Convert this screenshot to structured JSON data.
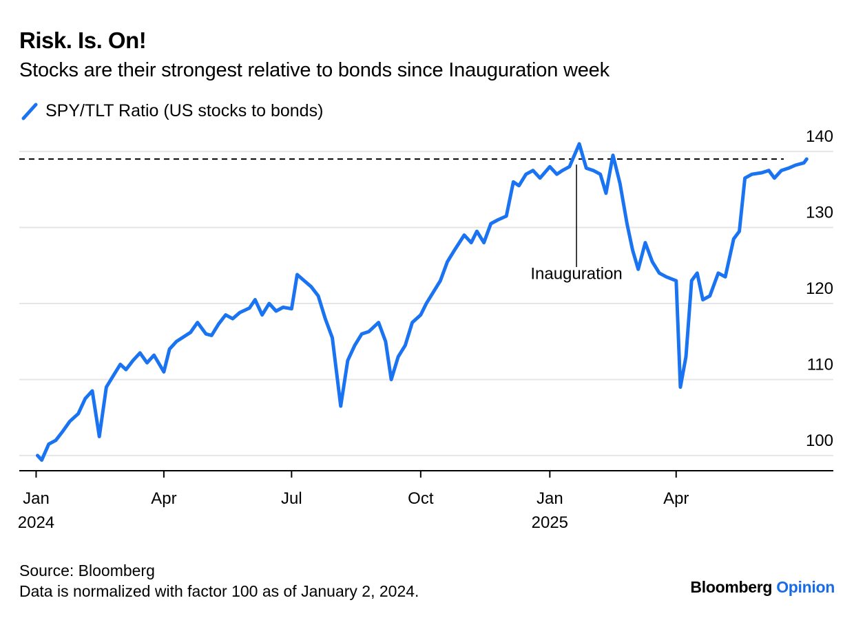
{
  "header": {
    "title": "Risk. Is. On!",
    "subtitle": "Stocks are their strongest relative to bonds since Inauguration week"
  },
  "footer": {
    "source": "Source: Bloomberg",
    "note": "Data is normalized with factor 100 as of January 2, 2024.",
    "brand": "Bloomberg",
    "brand_accent": "Opinion"
  },
  "colors": {
    "series": "#1a73f0",
    "brand_accent": "#1a6be6"
  },
  "chart_data": {
    "type": "line",
    "title": "Risk. Is. On!",
    "subtitle": "Stocks are their strongest relative to bonds since Inauguration week",
    "ylim": [
      98,
      142
    ],
    "yticks": [
      100,
      110,
      120,
      130,
      140
    ],
    "xlim": [
      "2023-12-20",
      "2025-07-22"
    ],
    "xticks": [
      {
        "date": "2024-01-01",
        "label": "Jan",
        "sublabel": "2024"
      },
      {
        "date": "2024-04-01",
        "label": "Apr",
        "sublabel": ""
      },
      {
        "date": "2024-07-01",
        "label": "Jul",
        "sublabel": ""
      },
      {
        "date": "2024-10-01",
        "label": "Oct",
        "sublabel": ""
      },
      {
        "date": "2025-01-01",
        "label": "Jan",
        "sublabel": "2025"
      },
      {
        "date": "2025-04-01",
        "label": "Apr",
        "sublabel": ""
      }
    ],
    "grid": true,
    "legend": "top-left",
    "reference_line": {
      "y": 139,
      "style": "dashed"
    },
    "annotations": [
      {
        "label": "Inauguration",
        "date": "2025-01-20",
        "y": 139
      }
    ],
    "series": [
      {
        "name": "SPY/TLT Ratio (US stocks to bonds)",
        "x": [
          "2024-01-02",
          "2024-01-05",
          "2024-01-10",
          "2024-01-15",
          "2024-01-20",
          "2024-01-25",
          "2024-01-31",
          "2024-02-05",
          "2024-02-10",
          "2024-02-15",
          "2024-02-20",
          "2024-02-25",
          "2024-03-01",
          "2024-03-05",
          "2024-03-10",
          "2024-03-15",
          "2024-03-20",
          "2024-03-25",
          "2024-04-01",
          "2024-04-05",
          "2024-04-10",
          "2024-04-15",
          "2024-04-20",
          "2024-04-25",
          "2024-05-01",
          "2024-05-05",
          "2024-05-10",
          "2024-05-15",
          "2024-05-20",
          "2024-05-25",
          "2024-06-01",
          "2024-06-05",
          "2024-06-10",
          "2024-06-15",
          "2024-06-20",
          "2024-06-25",
          "2024-07-01",
          "2024-07-05",
          "2024-07-10",
          "2024-07-15",
          "2024-07-20",
          "2024-07-25",
          "2024-07-30",
          "2024-08-05",
          "2024-08-10",
          "2024-08-15",
          "2024-08-20",
          "2024-08-25",
          "2024-09-01",
          "2024-09-06",
          "2024-09-10",
          "2024-09-15",
          "2024-09-20",
          "2024-09-25",
          "2024-10-01",
          "2024-10-05",
          "2024-10-10",
          "2024-10-15",
          "2024-10-20",
          "2024-10-25",
          "2024-11-01",
          "2024-11-06",
          "2024-11-10",
          "2024-11-15",
          "2024-11-20",
          "2024-11-25",
          "2024-12-01",
          "2024-12-06",
          "2024-12-10",
          "2024-12-15",
          "2024-12-20",
          "2024-12-25",
          "2025-01-01",
          "2025-01-06",
          "2025-01-10",
          "2025-01-15",
          "2025-01-22",
          "2025-01-27",
          "2025-02-01",
          "2025-02-06",
          "2025-02-10",
          "2025-02-15",
          "2025-02-20",
          "2025-02-25",
          "2025-03-01",
          "2025-03-05",
          "2025-03-10",
          "2025-03-15",
          "2025-03-20",
          "2025-03-25",
          "2025-04-01",
          "2025-04-04",
          "2025-04-08",
          "2025-04-12",
          "2025-04-16",
          "2025-04-20",
          "2025-04-25",
          "2025-05-01",
          "2025-05-06",
          "2025-05-12",
          "2025-05-16",
          "2025-05-20",
          "2025-05-25",
          "2025-06-01",
          "2025-06-06",
          "2025-06-10",
          "2025-06-15",
          "2025-06-20",
          "2025-06-25",
          "2025-07-01",
          "2025-07-03"
        ],
        "values": [
          100.0,
          99.4,
          101.5,
          102.0,
          103.2,
          104.5,
          105.5,
          107.5,
          108.5,
          102.5,
          109.0,
          110.5,
          112.0,
          111.3,
          112.5,
          113.5,
          112.2,
          113.2,
          111.0,
          114.0,
          115.0,
          115.6,
          116.2,
          117.5,
          116.0,
          115.8,
          117.3,
          118.5,
          118.0,
          118.8,
          119.4,
          120.5,
          118.5,
          120.0,
          119.0,
          119.5,
          119.3,
          123.8,
          123.0,
          122.2,
          121.0,
          118.0,
          115.5,
          106.5,
          112.5,
          114.5,
          116.0,
          116.3,
          117.5,
          115.0,
          110.0,
          113.0,
          114.5,
          117.5,
          118.5,
          120.0,
          121.5,
          123.0,
          125.5,
          127.0,
          129.0,
          128.0,
          129.5,
          128.0,
          130.5,
          131.0,
          131.5,
          136.0,
          135.5,
          137.0,
          137.5,
          136.5,
          138.0,
          137.0,
          137.5,
          138.0,
          141.0,
          137.8,
          137.5,
          137.0,
          134.5,
          139.5,
          135.8,
          130.5,
          127.0,
          124.5,
          128.0,
          125.5,
          124.0,
          123.5,
          123.0,
          109.0,
          113.0,
          123.0,
          124.0,
          120.5,
          121.0,
          124.0,
          123.5,
          128.5,
          129.5,
          136.5,
          137.0,
          137.2,
          137.5,
          136.5,
          137.5,
          137.8,
          138.2,
          138.5,
          139.0
        ]
      }
    ]
  }
}
